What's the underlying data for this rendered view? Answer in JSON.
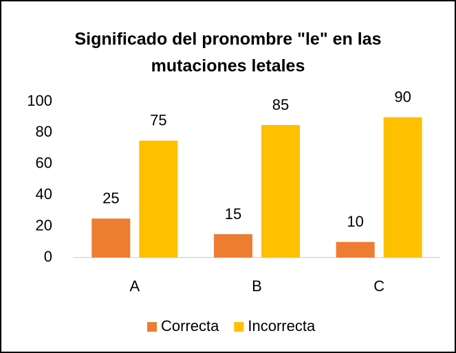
{
  "chart_data": {
    "type": "bar",
    "title": "Significado del pronombre \"le\" en las mutaciones letales",
    "categories": [
      "A",
      "B",
      "C"
    ],
    "series": [
      {
        "name": "Correcta",
        "color": "#ed7d31",
        "values": [
          25,
          15,
          10
        ]
      },
      {
        "name": "Incorrecta",
        "color": "#ffc000",
        "values": [
          75,
          85,
          90
        ]
      }
    ],
    "ylim": [
      0,
      100
    ],
    "yticks": [
      0,
      20,
      40,
      60,
      80,
      100
    ],
    "grid": false,
    "legend": "bottom",
    "data_labels": true
  }
}
